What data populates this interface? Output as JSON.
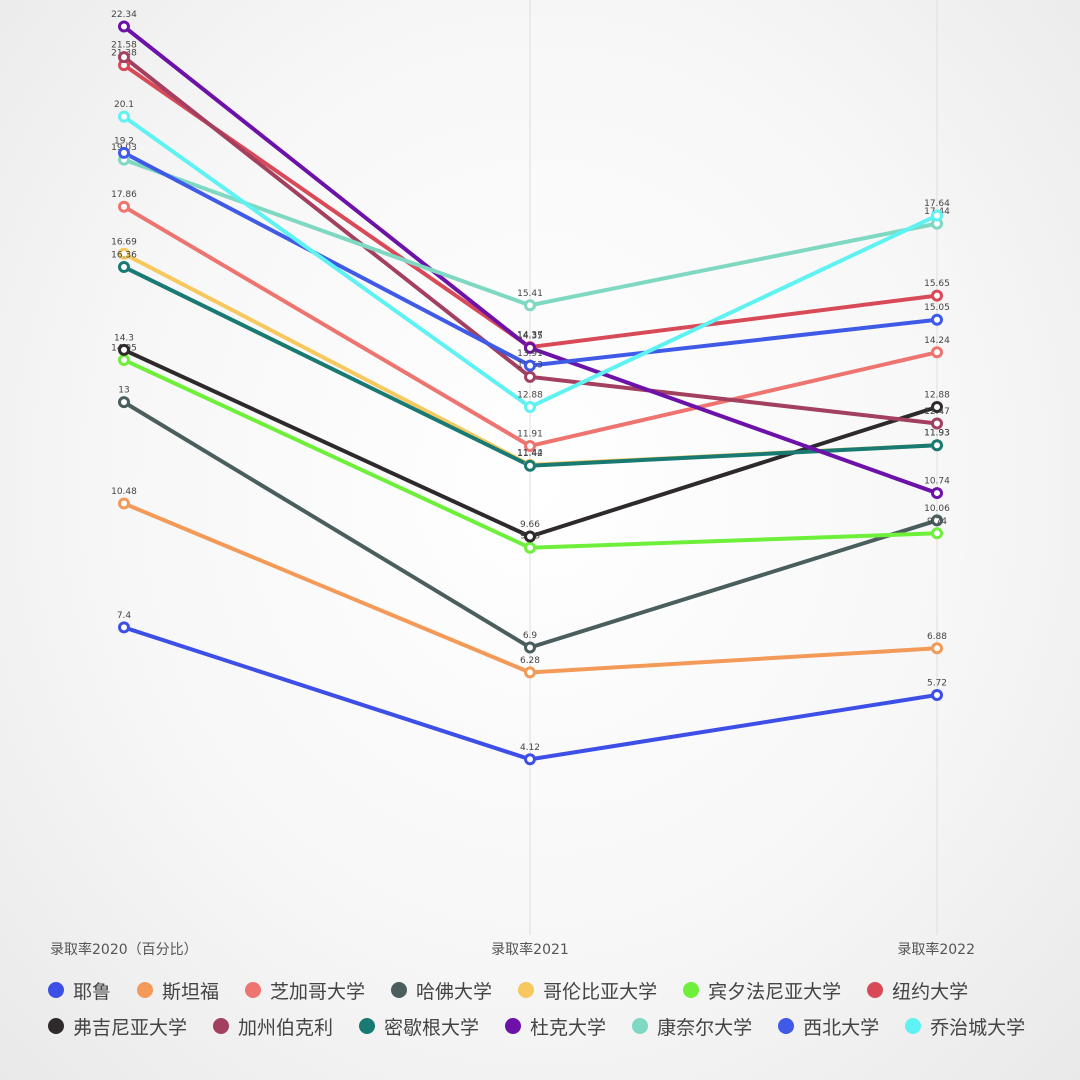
{
  "chart_data": {
    "type": "line",
    "categories": [
      "录取率2020（百分比）",
      "录取率2021",
      "录取率2022"
    ],
    "ylim": [
      0,
      23
    ],
    "series": [
      {
        "name": "耶鲁",
        "color": "#3d4fe6",
        "values": [
          7.4,
          4.12,
          5.72
        ]
      },
      {
        "name": "斯坦福",
        "color": "#f39a58",
        "values": [
          10.48,
          6.28,
          6.88
        ]
      },
      {
        "name": "芝加哥大学",
        "color": "#ee7470",
        "values": [
          17.86,
          11.91,
          14.24
        ]
      },
      {
        "name": "哈佛大学",
        "color": "#4a5e5e",
        "values": [
          13,
          6.9,
          10.06
        ]
      },
      {
        "name": "哥伦比亚大学",
        "color": "#f6c85e",
        "values": [
          16.69,
          11.44,
          11.93
        ]
      },
      {
        "name": "宾夕法尼亚大学",
        "color": "#6ef03a",
        "values": [
          14.05,
          9.38,
          9.74
        ]
      },
      {
        "name": "纽约大学",
        "color": "#d94a58",
        "values": [
          21.38,
          14.37,
          15.65
        ]
      },
      {
        "name": "弗吉尼亚大学",
        "color": "#2e2a2c",
        "values": [
          14.3,
          9.66,
          12.88
        ]
      },
      {
        "name": "加州伯克利",
        "color": "#a3405f",
        "values": [
          21.58,
          13.63,
          12.47
        ]
      },
      {
        "name": "密歇根大学",
        "color": "#187a72",
        "values": [
          16.36,
          11.42,
          11.93
        ]
      },
      {
        "name": "杜克大学",
        "color": "#6c12a8",
        "values": [
          22.34,
          14.35,
          10.74
        ]
      },
      {
        "name": "康奈尔大学",
        "color": "#7fd8c2",
        "values": [
          19.03,
          15.41,
          17.44
        ]
      },
      {
        "name": "西北大学",
        "color": "#3f5ae6",
        "values": [
          19.2,
          13.91,
          15.05
        ]
      },
      {
        "name": "乔治城大学",
        "color": "#5ef2f2",
        "values": [
          20.1,
          12.88,
          17.64
        ]
      }
    ]
  }
}
